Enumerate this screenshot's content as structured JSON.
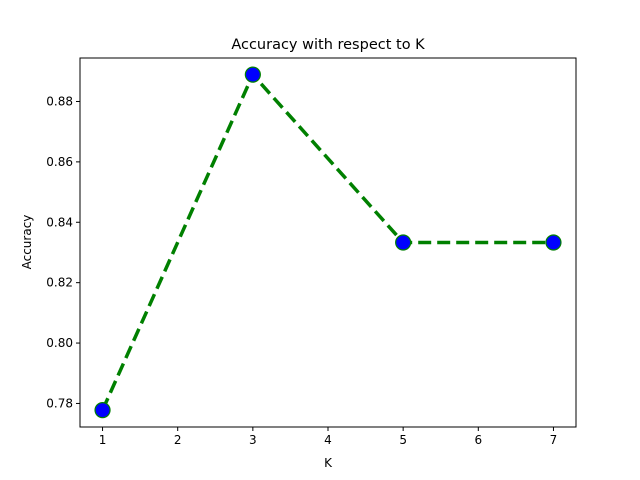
{
  "chart_data": {
    "type": "line",
    "title": "Accuracy with respect to K",
    "xlabel": "K",
    "ylabel": "Accuracy",
    "x": [
      1,
      3,
      5,
      7
    ],
    "series": [
      {
        "values": [
          0.7778,
          0.8889,
          0.8333,
          0.8333
        ],
        "line_color": "#008000",
        "line_style": "dashed",
        "marker": "circle",
        "marker_color": "#0000ff"
      }
    ],
    "xlim": [
      0.7,
      7.3
    ],
    "ylim": [
      0.7722,
      0.8944
    ],
    "xticks": [
      1,
      2,
      3,
      4,
      5,
      6,
      7
    ],
    "xtick_labels": [
      "1",
      "2",
      "3",
      "4",
      "5",
      "6",
      "7"
    ],
    "yticks": [
      0.78,
      0.8,
      0.82,
      0.84,
      0.86,
      0.88
    ],
    "ytick_labels": [
      "0.78",
      "0.80",
      "0.82",
      "0.84",
      "0.86",
      "0.88"
    ],
    "grid": false,
    "legend": "none"
  }
}
